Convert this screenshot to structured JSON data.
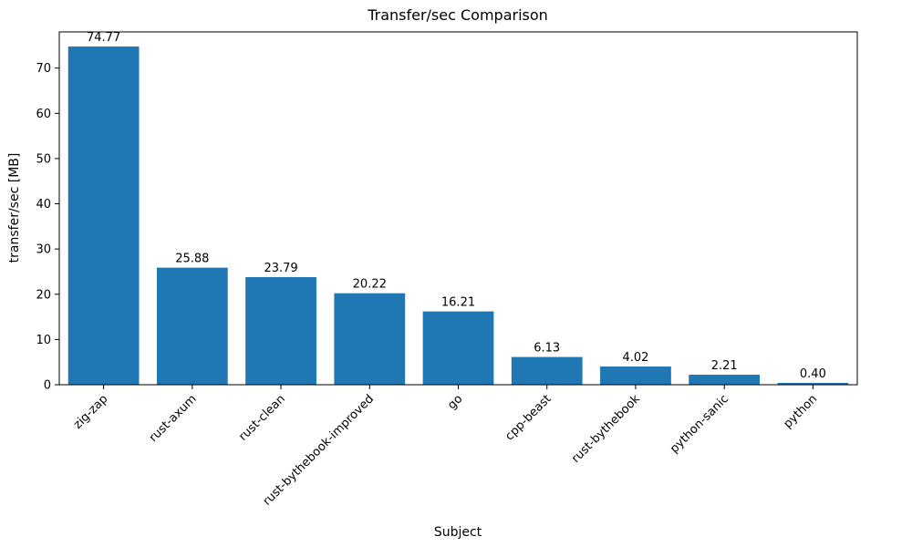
{
  "chart_data": {
    "type": "bar",
    "title": "Transfer/sec Comparison",
    "xlabel": "Subject",
    "ylabel": "transfer/sec [MB]",
    "categories": [
      "zig-zap",
      "rust-axum",
      "rust-clean",
      "rust-bythebook-improved",
      "go",
      "cpp-beast",
      "rust-bythebook",
      "python-sanic",
      "python"
    ],
    "values": [
      74.77,
      25.88,
      23.79,
      20.22,
      16.21,
      6.13,
      4.02,
      2.21,
      0.4
    ],
    "value_labels": [
      "74.77",
      "25.88",
      "23.79",
      "20.22",
      "16.21",
      "6.13",
      "4.02",
      "2.21",
      "0.40"
    ],
    "yticks": [
      0,
      10,
      20,
      30,
      40,
      50,
      60,
      70
    ],
    "ylim": [
      0,
      78
    ],
    "bar_color": "#1f77b4",
    "frame_color": "#000000",
    "grid": false,
    "legend": "none",
    "x_tick_rotation_deg": 45
  }
}
